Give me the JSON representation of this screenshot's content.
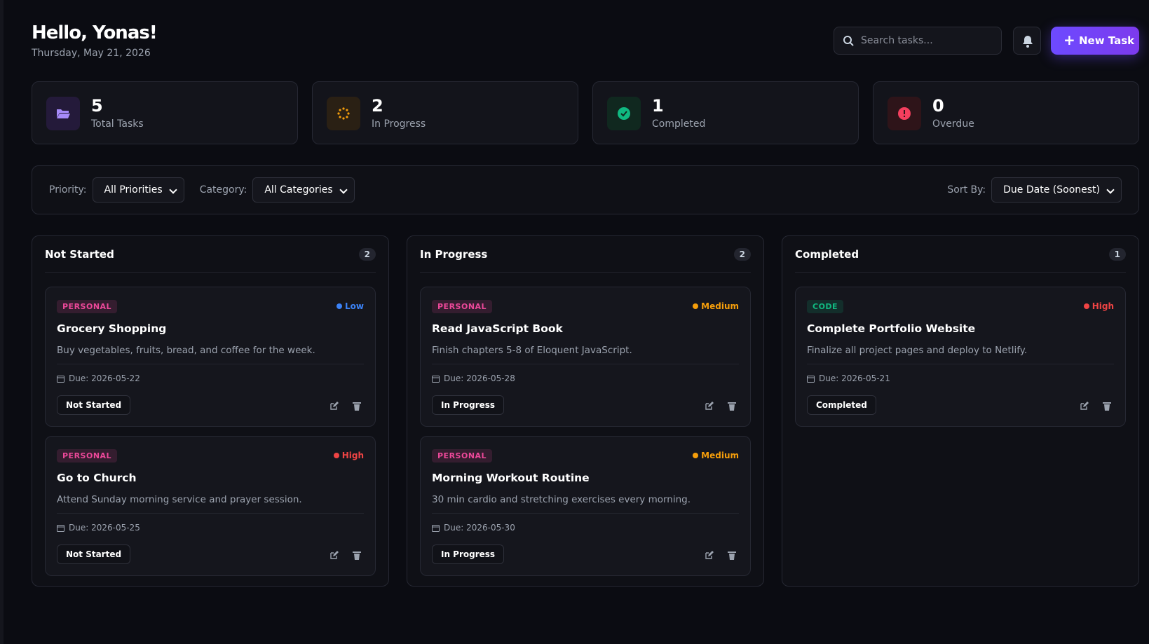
{
  "header": {
    "greeting": "Hello, Yonas!",
    "date": "Thursday, May 21, 2026",
    "search_placeholder": "Search tasks...",
    "new_task": "New Task"
  },
  "stats": [
    {
      "value": 5,
      "label": "Total Tasks",
      "color": "#a78bfa",
      "bg": "#241a3a"
    },
    {
      "value": 2,
      "label": "In Progress",
      "color": "#f59e0b",
      "bg": "#2a2014"
    },
    {
      "value": 1,
      "label": "Completed",
      "color": "#10b981",
      "bg": "#10281f"
    },
    {
      "value": 0,
      "label": "Overdue",
      "color": "#f43f5e",
      "bg": "#2e1419"
    }
  ],
  "filters": {
    "priority_label": "Priority:",
    "priority_value": "All Priorities",
    "category_label": "Category:",
    "category_value": "All Categories",
    "sort_label": "Sort By:",
    "sort_value": "Due Date (Soonest)"
  },
  "columns": [
    {
      "title": "Not Started",
      "count": 2,
      "tasks": [
        {
          "category": "PERSONAL",
          "category_color": "#ec4899",
          "priority": "Low",
          "priority_color": "#3b82f6",
          "title": "Grocery Shopping",
          "description": "Buy vegetables, fruits, bread, and coffee for the week.",
          "due": "Due: 2026-05-22",
          "status": "Not Started"
        },
        {
          "category": "PERSONAL",
          "category_color": "#ec4899",
          "priority": "High",
          "priority_color": "#ef4444",
          "title": "Go to Church",
          "description": "Attend Sunday morning service and prayer session.",
          "due": "Due: 2026-05-25",
          "status": "Not Started"
        }
      ]
    },
    {
      "title": "In Progress",
      "count": 2,
      "tasks": [
        {
          "category": "PERSONAL",
          "category_color": "#ec4899",
          "priority": "Medium",
          "priority_color": "#f59e0b",
          "title": "Read JavaScript Book",
          "description": "Finish chapters 5-8 of Eloquent JavaScript.",
          "due": "Due: 2026-05-28",
          "status": "In Progress"
        },
        {
          "category": "PERSONAL",
          "category_color": "#ec4899",
          "priority": "Medium",
          "priority_color": "#f59e0b",
          "title": "Morning Workout Routine",
          "description": "30 min cardio and stretching exercises every morning.",
          "due": "Due: 2026-05-30",
          "status": "In Progress"
        }
      ]
    },
    {
      "title": "Completed",
      "count": 1,
      "tasks": [
        {
          "category": "CODE",
          "category_color": "#10b981",
          "priority": "High",
          "priority_color": "#ef4444",
          "title": "Complete Portfolio Website",
          "description": "Finalize all project pages and deploy to Netlify.",
          "due": "Due: 2026-05-21",
          "status": "Completed"
        }
      ]
    }
  ]
}
